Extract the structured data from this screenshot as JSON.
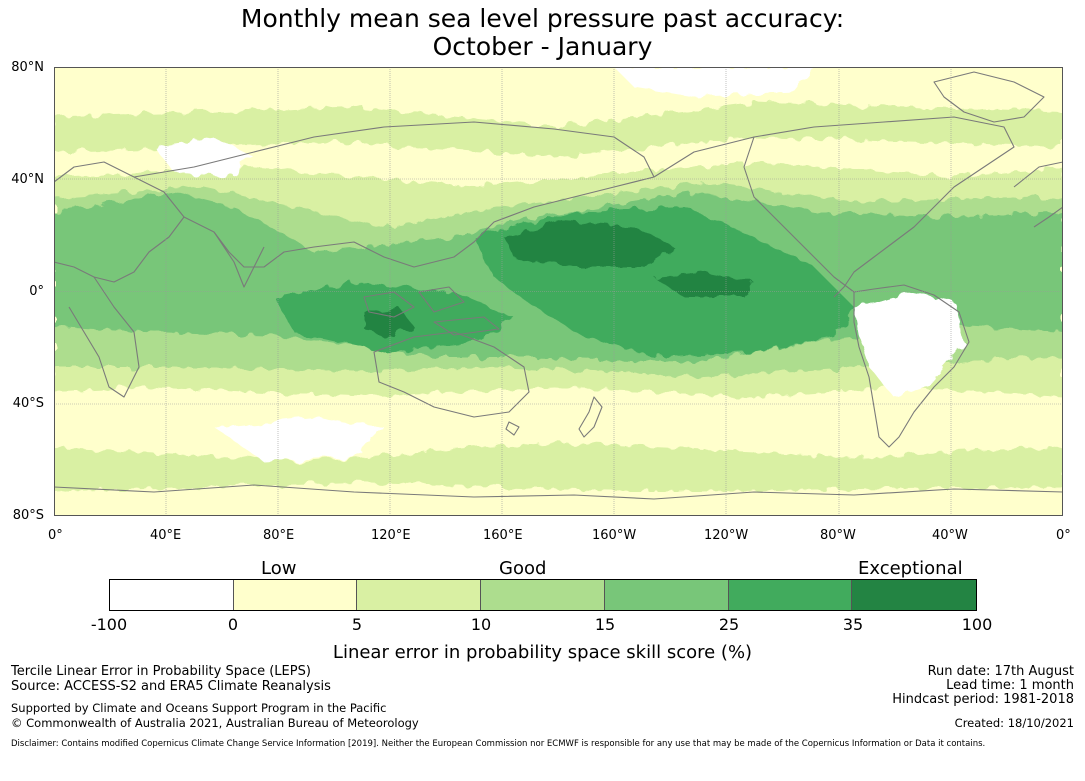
{
  "title": {
    "line1": "Monthly mean sea level pressure past accuracy:",
    "line2": "October - January"
  },
  "map": {
    "lat_labels": [
      "80°N",
      "40°N",
      "0°",
      "40°S",
      "80°S"
    ],
    "lon_labels": [
      "0°",
      "40°E",
      "80°E",
      "120°E",
      "160°E",
      "160°W",
      "120°W",
      "80°W",
      "40°W",
      "0°"
    ],
    "coastline_color": "#7a7a7a",
    "gridline_color": "#9a9a9a"
  },
  "legend": {
    "categories": [
      "Low",
      "Good",
      "Exceptional"
    ],
    "ticks": [
      "-100",
      "0",
      "5",
      "10",
      "15",
      "25",
      "35",
      "100"
    ],
    "colors": [
      "#ffffff",
      "#ffffcc",
      "#d9f0a3",
      "#addd8e",
      "#78c679",
      "#41ab5d",
      "#238443"
    ],
    "axis_title": "Linear error in probability space skill score (%)"
  },
  "footer": {
    "left_line1": "Tercile Linear Error in Probability Space (LEPS)",
    "left_line2": "Source: ACCESS-S2 and ERA5 Climate Reanalysis",
    "left_line3": "Supported by Climate and Oceans Support Program in the Pacific",
    "left_line4": "© Commonwealth of Australia 2021, Australian Bureau of Meteorology",
    "right_line1": "Run date: 17th August",
    "right_line2": "Lead time: 1 month",
    "right_line3": "Hindcast period: 1981-2018",
    "right_line4": "Created: 18/10/2021",
    "disclaimer": "Disclaimer: Contains modified Copernicus Climate Change Service Information [2019]. Neither the European Commission nor ECMWF is responsible for any use that may be made of the Copernicus Information or Data it contains."
  }
}
